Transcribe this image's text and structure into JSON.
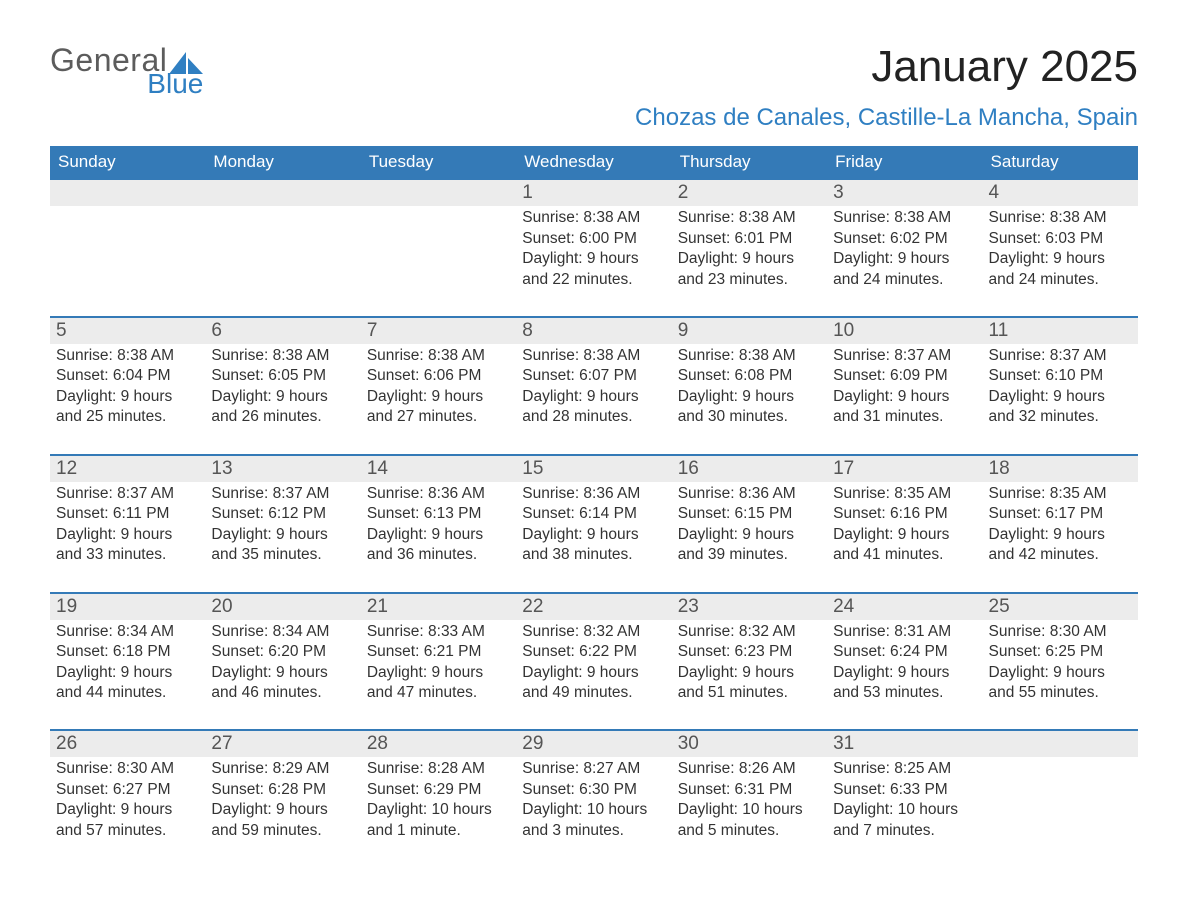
{
  "logo": {
    "general": "General",
    "blue": "Blue"
  },
  "colors": {
    "header_bg": "#347ab7",
    "header_text": "#ffffff",
    "week_border": "#347ab7",
    "daynum_bg": "#ececec",
    "daynum_text": "#555555",
    "body_text": "#333333",
    "logo_gray": "#5c5c5c",
    "logo_blue": "#2f7fc2",
    "location_text": "#2f7fc2",
    "page_bg": "#ffffff"
  },
  "title": {
    "month": "January 2025",
    "location": "Chozas de Canales, Castille-La Mancha, Spain"
  },
  "days_of_week": [
    "Sunday",
    "Monday",
    "Tuesday",
    "Wednesday",
    "Thursday",
    "Friday",
    "Saturday"
  ],
  "weeks": [
    [
      {
        "num": "",
        "lines": [
          "",
          "",
          "",
          ""
        ]
      },
      {
        "num": "",
        "lines": [
          "",
          "",
          "",
          ""
        ]
      },
      {
        "num": "",
        "lines": [
          "",
          "",
          "",
          ""
        ]
      },
      {
        "num": "1",
        "lines": [
          "Sunrise: 8:38 AM",
          "Sunset: 6:00 PM",
          "Daylight: 9 hours",
          "and 22 minutes."
        ]
      },
      {
        "num": "2",
        "lines": [
          "Sunrise: 8:38 AM",
          "Sunset: 6:01 PM",
          "Daylight: 9 hours",
          "and 23 minutes."
        ]
      },
      {
        "num": "3",
        "lines": [
          "Sunrise: 8:38 AM",
          "Sunset: 6:02 PM",
          "Daylight: 9 hours",
          "and 24 minutes."
        ]
      },
      {
        "num": "4",
        "lines": [
          "Sunrise: 8:38 AM",
          "Sunset: 6:03 PM",
          "Daylight: 9 hours",
          "and 24 minutes."
        ]
      }
    ],
    [
      {
        "num": "5",
        "lines": [
          "Sunrise: 8:38 AM",
          "Sunset: 6:04 PM",
          "Daylight: 9 hours",
          "and 25 minutes."
        ]
      },
      {
        "num": "6",
        "lines": [
          "Sunrise: 8:38 AM",
          "Sunset: 6:05 PM",
          "Daylight: 9 hours",
          "and 26 minutes."
        ]
      },
      {
        "num": "7",
        "lines": [
          "Sunrise: 8:38 AM",
          "Sunset: 6:06 PM",
          "Daylight: 9 hours",
          "and 27 minutes."
        ]
      },
      {
        "num": "8",
        "lines": [
          "Sunrise: 8:38 AM",
          "Sunset: 6:07 PM",
          "Daylight: 9 hours",
          "and 28 minutes."
        ]
      },
      {
        "num": "9",
        "lines": [
          "Sunrise: 8:38 AM",
          "Sunset: 6:08 PM",
          "Daylight: 9 hours",
          "and 30 minutes."
        ]
      },
      {
        "num": "10",
        "lines": [
          "Sunrise: 8:37 AM",
          "Sunset: 6:09 PM",
          "Daylight: 9 hours",
          "and 31 minutes."
        ]
      },
      {
        "num": "11",
        "lines": [
          "Sunrise: 8:37 AM",
          "Sunset: 6:10 PM",
          "Daylight: 9 hours",
          "and 32 minutes."
        ]
      }
    ],
    [
      {
        "num": "12",
        "lines": [
          "Sunrise: 8:37 AM",
          "Sunset: 6:11 PM",
          "Daylight: 9 hours",
          "and 33 minutes."
        ]
      },
      {
        "num": "13",
        "lines": [
          "Sunrise: 8:37 AM",
          "Sunset: 6:12 PM",
          "Daylight: 9 hours",
          "and 35 minutes."
        ]
      },
      {
        "num": "14",
        "lines": [
          "Sunrise: 8:36 AM",
          "Sunset: 6:13 PM",
          "Daylight: 9 hours",
          "and 36 minutes."
        ]
      },
      {
        "num": "15",
        "lines": [
          "Sunrise: 8:36 AM",
          "Sunset: 6:14 PM",
          "Daylight: 9 hours",
          "and 38 minutes."
        ]
      },
      {
        "num": "16",
        "lines": [
          "Sunrise: 8:36 AM",
          "Sunset: 6:15 PM",
          "Daylight: 9 hours",
          "and 39 minutes."
        ]
      },
      {
        "num": "17",
        "lines": [
          "Sunrise: 8:35 AM",
          "Sunset: 6:16 PM",
          "Daylight: 9 hours",
          "and 41 minutes."
        ]
      },
      {
        "num": "18",
        "lines": [
          "Sunrise: 8:35 AM",
          "Sunset: 6:17 PM",
          "Daylight: 9 hours",
          "and 42 minutes."
        ]
      }
    ],
    [
      {
        "num": "19",
        "lines": [
          "Sunrise: 8:34 AM",
          "Sunset: 6:18 PM",
          "Daylight: 9 hours",
          "and 44 minutes."
        ]
      },
      {
        "num": "20",
        "lines": [
          "Sunrise: 8:34 AM",
          "Sunset: 6:20 PM",
          "Daylight: 9 hours",
          "and 46 minutes."
        ]
      },
      {
        "num": "21",
        "lines": [
          "Sunrise: 8:33 AM",
          "Sunset: 6:21 PM",
          "Daylight: 9 hours",
          "and 47 minutes."
        ]
      },
      {
        "num": "22",
        "lines": [
          "Sunrise: 8:32 AM",
          "Sunset: 6:22 PM",
          "Daylight: 9 hours",
          "and 49 minutes."
        ]
      },
      {
        "num": "23",
        "lines": [
          "Sunrise: 8:32 AM",
          "Sunset: 6:23 PM",
          "Daylight: 9 hours",
          "and 51 minutes."
        ]
      },
      {
        "num": "24",
        "lines": [
          "Sunrise: 8:31 AM",
          "Sunset: 6:24 PM",
          "Daylight: 9 hours",
          "and 53 minutes."
        ]
      },
      {
        "num": "25",
        "lines": [
          "Sunrise: 8:30 AM",
          "Sunset: 6:25 PM",
          "Daylight: 9 hours",
          "and 55 minutes."
        ]
      }
    ],
    [
      {
        "num": "26",
        "lines": [
          "Sunrise: 8:30 AM",
          "Sunset: 6:27 PM",
          "Daylight: 9 hours",
          "and 57 minutes."
        ]
      },
      {
        "num": "27",
        "lines": [
          "Sunrise: 8:29 AM",
          "Sunset: 6:28 PM",
          "Daylight: 9 hours",
          "and 59 minutes."
        ]
      },
      {
        "num": "28",
        "lines": [
          "Sunrise: 8:28 AM",
          "Sunset: 6:29 PM",
          "Daylight: 10 hours",
          "and 1 minute."
        ]
      },
      {
        "num": "29",
        "lines": [
          "Sunrise: 8:27 AM",
          "Sunset: 6:30 PM",
          "Daylight: 10 hours",
          "and 3 minutes."
        ]
      },
      {
        "num": "30",
        "lines": [
          "Sunrise: 8:26 AM",
          "Sunset: 6:31 PM",
          "Daylight: 10 hours",
          "and 5 minutes."
        ]
      },
      {
        "num": "31",
        "lines": [
          "Sunrise: 8:25 AM",
          "Sunset: 6:33 PM",
          "Daylight: 10 hours",
          "and 7 minutes."
        ]
      },
      {
        "num": "",
        "lines": [
          "",
          "",
          "",
          ""
        ]
      }
    ]
  ]
}
